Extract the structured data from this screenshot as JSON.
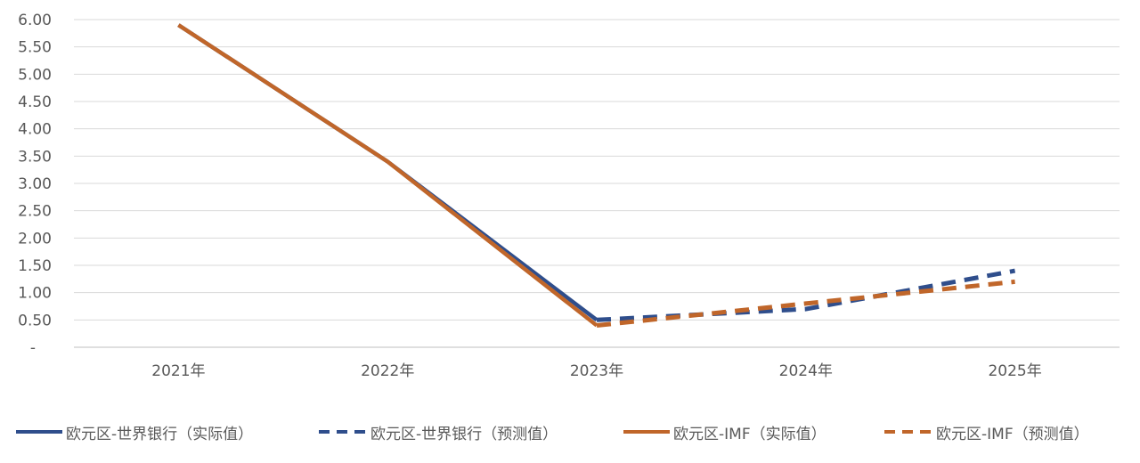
{
  "chart_data": {
    "type": "line",
    "categories": [
      "2021年",
      "2022年",
      "2023年",
      "2024年",
      "2025年"
    ],
    "y_ticks": [
      "-",
      "0.50",
      "1.00",
      "1.50",
      "2.00",
      "2.50",
      "3.00",
      "3.50",
      "4.00",
      "4.50",
      "5.00",
      "5.50",
      "6.00"
    ],
    "ylim": [
      0,
      6
    ],
    "grid": true,
    "legend_position": "bottom",
    "series": [
      {
        "name": "欧元区-世界银行（实际值）",
        "color": "#2F4E8C",
        "dash": false,
        "values": [
          5.9,
          3.4,
          0.5,
          null,
          null
        ]
      },
      {
        "name": "欧元区-世界银行（预测值）",
        "color": "#2F4E8C",
        "dash": true,
        "values": [
          null,
          null,
          0.5,
          0.7,
          1.4
        ]
      },
      {
        "name": "欧元区-IMF（实际值）",
        "color": "#C0662A",
        "dash": false,
        "values": [
          5.9,
          3.4,
          0.4,
          null,
          null
        ]
      },
      {
        "name": "欧元区-IMF（预测值）",
        "color": "#C0662A",
        "dash": true,
        "values": [
          null,
          null,
          0.4,
          0.8,
          1.2
        ]
      }
    ]
  }
}
